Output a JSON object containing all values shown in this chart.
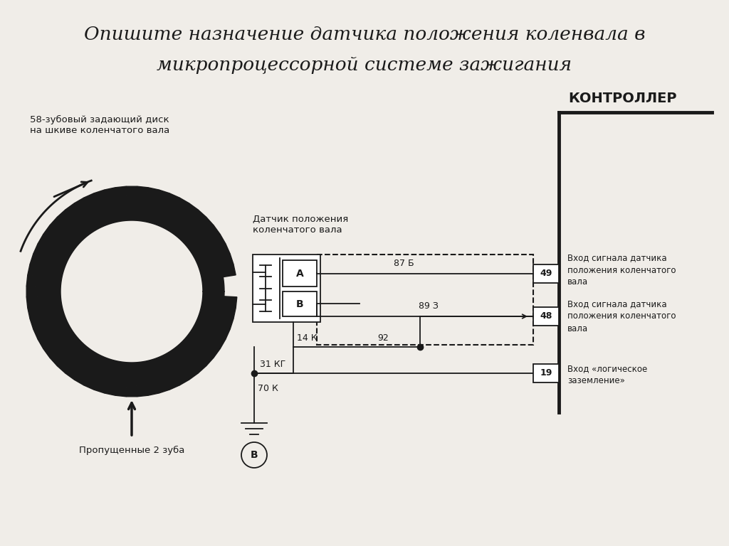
{
  "title_line1": "Опишите назначение датчика положения коленвала в",
  "title_line2": "микропроцессорной системе зажигания",
  "disk_label": "58-зубовый задающий диск\nна шкиве коленчатого вала",
  "missing_teeth_label": "Пропущенные 2 зуба",
  "sensor_label": "Датчик положения\nколенчатого вала",
  "controller_label": "КОНТРОЛЛЕР",
  "wire_87b": "87 Б",
  "wire_893": "89 З",
  "wire_14k": "14 К",
  "wire_92": "92",
  "wire_31kg": "31 КГ",
  "wire_70k": "70 К",
  "pin_49": "49",
  "pin_48": "48",
  "pin_19": "19",
  "label_49": "Вход сигнала датчика\nположения коленчатого\nвала",
  "label_48": "Вход сигнала датчика\nположения коленчатого\nвала",
  "label_19": "Вход «логическое\nзаземление»",
  "bg_color": "#f0ede8",
  "line_color": "#1a1a1a",
  "num_teeth": 58,
  "missing_count": 2,
  "figw": 10.24,
  "figh": 7.68
}
